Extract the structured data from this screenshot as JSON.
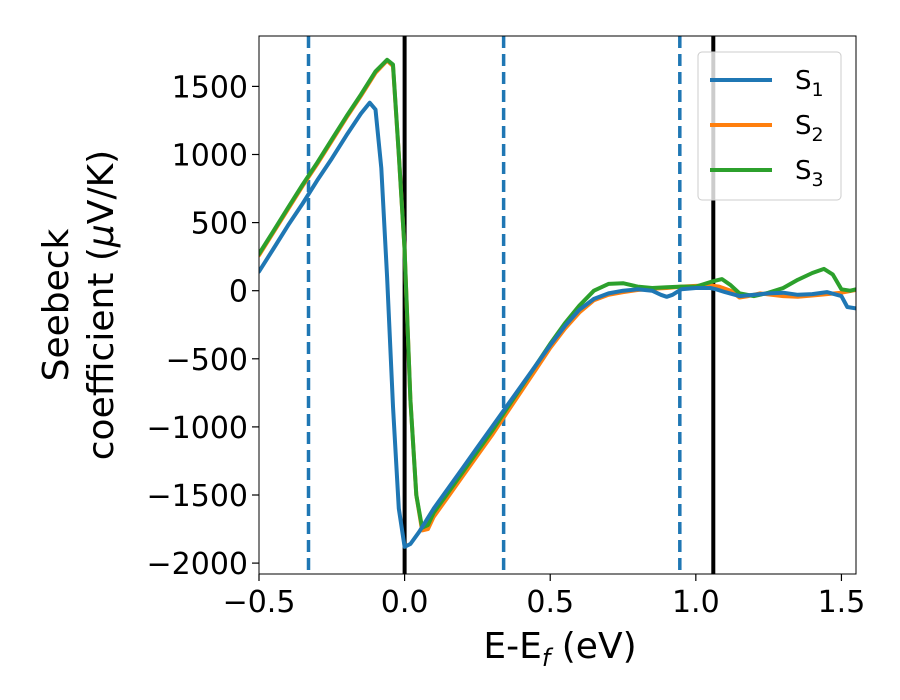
{
  "chart_data": {
    "type": "line",
    "xlabel": {
      "main": "E-E",
      "sub": "f",
      "suffix": " (eV)"
    },
    "ylabel": {
      "line1": "Seebeck",
      "line2_prefix": "coefficient  (",
      "mu": "μ",
      "line2_suffix": "V/K)"
    },
    "xlim": [
      -0.5,
      1.55
    ],
    "ylim": [
      -2080,
      1870
    ],
    "x_ticks": [
      {
        "value": -0.5,
        "label": "−0.5"
      },
      {
        "value": 0.0,
        "label": "0.0"
      },
      {
        "value": 0.5,
        "label": "0.5"
      },
      {
        "value": 1.0,
        "label": "1.0"
      },
      {
        "value": 1.5,
        "label": "1.5"
      }
    ],
    "y_ticks": [
      {
        "value": 1500,
        "label": "1500"
      },
      {
        "value": 1000,
        "label": "1000"
      },
      {
        "value": 500,
        "label": "500"
      },
      {
        "value": 0,
        "label": "0"
      },
      {
        "value": -500,
        "label": "−500"
      },
      {
        "value": -1000,
        "label": "−1000"
      },
      {
        "value": -1500,
        "label": "−1500"
      },
      {
        "value": -2000,
        "label": "−2000"
      }
    ],
    "grid": false,
    "legend_position": "top-right",
    "vlines": [
      {
        "x": -0.33,
        "style": "dashed",
        "color": "#1f77b4"
      },
      {
        "x": 0.0,
        "style": "solid",
        "color": "#000000"
      },
      {
        "x": 0.34,
        "style": "dashed",
        "color": "#1f77b4"
      },
      {
        "x": 0.945,
        "style": "dashed",
        "color": "#1f77b4"
      },
      {
        "x": 1.06,
        "style": "solid",
        "color": "#000000"
      }
    ],
    "series": [
      {
        "name": "S",
        "sub": "1",
        "color": "#1f77b4",
        "points": [
          [
            -0.5,
            140
          ],
          [
            -0.45,
            310
          ],
          [
            -0.4,
            480
          ],
          [
            -0.35,
            640
          ],
          [
            -0.3,
            810
          ],
          [
            -0.25,
            970
          ],
          [
            -0.2,
            1140
          ],
          [
            -0.15,
            1300
          ],
          [
            -0.12,
            1380
          ],
          [
            -0.1,
            1330
          ],
          [
            -0.08,
            900
          ],
          [
            -0.06,
            100
          ],
          [
            -0.04,
            -850
          ],
          [
            -0.02,
            -1600
          ],
          [
            0.0,
            -1880
          ],
          [
            0.02,
            -1860
          ],
          [
            0.05,
            -1770
          ],
          [
            0.1,
            -1600
          ],
          [
            0.15,
            -1450
          ],
          [
            0.2,
            -1300
          ],
          [
            0.25,
            -1150
          ],
          [
            0.3,
            -1000
          ],
          [
            0.34,
            -880
          ],
          [
            0.4,
            -700
          ],
          [
            0.45,
            -550
          ],
          [
            0.5,
            -400
          ],
          [
            0.55,
            -260
          ],
          [
            0.6,
            -140
          ],
          [
            0.65,
            -60
          ],
          [
            0.7,
            -20
          ],
          [
            0.75,
            0
          ],
          [
            0.8,
            10
          ],
          [
            0.85,
            0
          ],
          [
            0.88,
            -30
          ],
          [
            0.9,
            -45
          ],
          [
            0.92,
            -30
          ],
          [
            0.95,
            10
          ],
          [
            1.0,
            20
          ],
          [
            1.05,
            20
          ],
          [
            1.07,
            10
          ],
          [
            1.1,
            -10
          ],
          [
            1.15,
            -40
          ],
          [
            1.2,
            -30
          ],
          [
            1.25,
            -20
          ],
          [
            1.3,
            -15
          ],
          [
            1.35,
            -30
          ],
          [
            1.4,
            -25
          ],
          [
            1.45,
            -10
          ],
          [
            1.5,
            -40
          ],
          [
            1.52,
            -120
          ],
          [
            1.55,
            -130
          ]
        ]
      },
      {
        "name": "S",
        "sub": "2",
        "color": "#ff7f0e",
        "points": [
          [
            -0.5,
            260
          ],
          [
            -0.45,
            430
          ],
          [
            -0.4,
            600
          ],
          [
            -0.35,
            770
          ],
          [
            -0.3,
            930
          ],
          [
            -0.25,
            1100
          ],
          [
            -0.2,
            1270
          ],
          [
            -0.15,
            1430
          ],
          [
            -0.1,
            1600
          ],
          [
            -0.06,
            1690
          ],
          [
            -0.04,
            1650
          ],
          [
            -0.02,
            1000
          ],
          [
            0.0,
            300
          ],
          [
            0.02,
            -800
          ],
          [
            0.04,
            -1500
          ],
          [
            0.06,
            -1760
          ],
          [
            0.08,
            -1750
          ],
          [
            0.1,
            -1660
          ],
          [
            0.15,
            -1510
          ],
          [
            0.2,
            -1360
          ],
          [
            0.25,
            -1210
          ],
          [
            0.3,
            -1060
          ],
          [
            0.35,
            -900
          ],
          [
            0.4,
            -740
          ],
          [
            0.45,
            -580
          ],
          [
            0.5,
            -420
          ],
          [
            0.55,
            -280
          ],
          [
            0.6,
            -160
          ],
          [
            0.65,
            -70
          ],
          [
            0.7,
            -30
          ],
          [
            0.75,
            -10
          ],
          [
            0.8,
            5
          ],
          [
            0.85,
            15
          ],
          [
            0.9,
            20
          ],
          [
            0.95,
            30
          ],
          [
            1.0,
            35
          ],
          [
            1.05,
            40
          ],
          [
            1.08,
            30
          ],
          [
            1.12,
            0
          ],
          [
            1.15,
            -50
          ],
          [
            1.18,
            -40
          ],
          [
            1.22,
            -20
          ],
          [
            1.26,
            -30
          ],
          [
            1.3,
            -40
          ],
          [
            1.35,
            -45
          ],
          [
            1.4,
            -35
          ],
          [
            1.45,
            -25
          ],
          [
            1.5,
            -15
          ],
          [
            1.55,
            5
          ]
        ]
      },
      {
        "name": "S",
        "sub": "3",
        "color": "#2ca02c",
        "points": [
          [
            -0.5,
            270
          ],
          [
            -0.45,
            440
          ],
          [
            -0.4,
            610
          ],
          [
            -0.35,
            780
          ],
          [
            -0.3,
            940
          ],
          [
            -0.25,
            1110
          ],
          [
            -0.2,
            1280
          ],
          [
            -0.15,
            1440
          ],
          [
            -0.1,
            1610
          ],
          [
            -0.06,
            1695
          ],
          [
            -0.04,
            1660
          ],
          [
            -0.02,
            1000
          ],
          [
            0.0,
            300
          ],
          [
            0.02,
            -800
          ],
          [
            0.04,
            -1500
          ],
          [
            0.06,
            -1740
          ],
          [
            0.08,
            -1720
          ],
          [
            0.1,
            -1630
          ],
          [
            0.15,
            -1480
          ],
          [
            0.2,
            -1330
          ],
          [
            0.25,
            -1180
          ],
          [
            0.3,
            -1030
          ],
          [
            0.35,
            -870
          ],
          [
            0.4,
            -710
          ],
          [
            0.45,
            -550
          ],
          [
            0.5,
            -390
          ],
          [
            0.55,
            -240
          ],
          [
            0.6,
            -110
          ],
          [
            0.65,
            0
          ],
          [
            0.7,
            50
          ],
          [
            0.75,
            55
          ],
          [
            0.8,
            30
          ],
          [
            0.85,
            20
          ],
          [
            0.9,
            25
          ],
          [
            0.95,
            30
          ],
          [
            1.0,
            30
          ],
          [
            1.03,
            50
          ],
          [
            1.06,
            70
          ],
          [
            1.09,
            85
          ],
          [
            1.12,
            40
          ],
          [
            1.15,
            -20
          ],
          [
            1.2,
            -40
          ],
          [
            1.25,
            -15
          ],
          [
            1.3,
            20
          ],
          [
            1.35,
            80
          ],
          [
            1.4,
            130
          ],
          [
            1.44,
            160
          ],
          [
            1.47,
            120
          ],
          [
            1.5,
            10
          ],
          [
            1.53,
            0
          ],
          [
            1.55,
            10
          ]
        ]
      }
    ]
  }
}
